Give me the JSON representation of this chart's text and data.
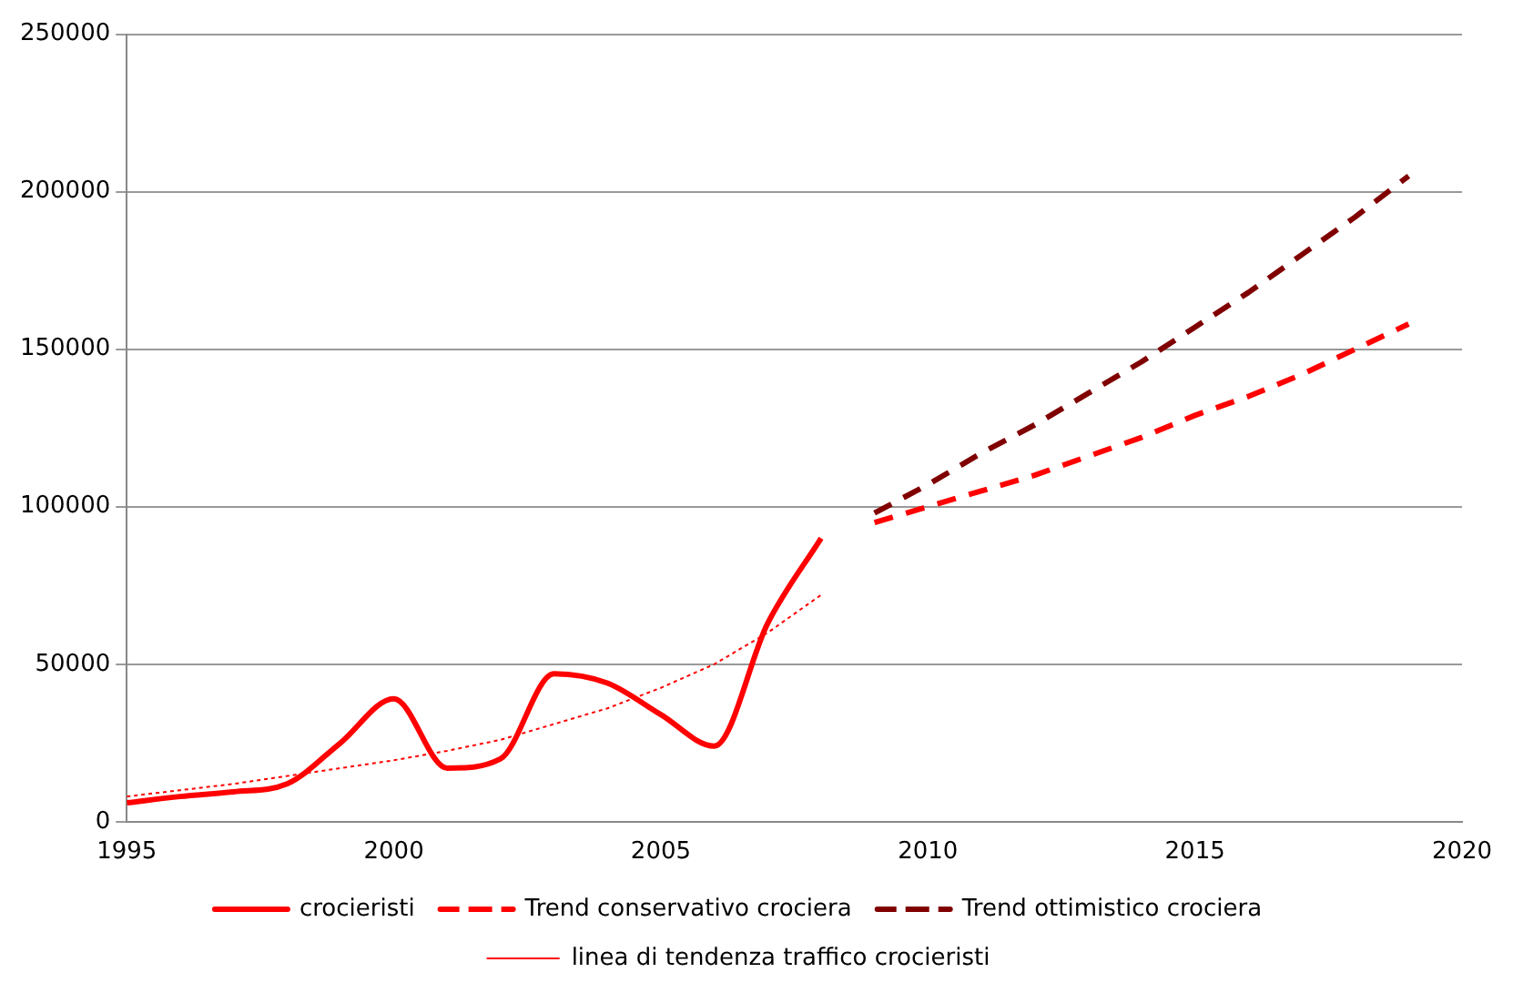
{
  "chart_data": {
    "type": "line",
    "xlim": [
      1995,
      2020
    ],
    "xticks": [
      1995,
      2000,
      2005,
      2010,
      2015,
      2020
    ],
    "ylim": [
      0,
      250000
    ],
    "yticks": [
      0,
      50000,
      100000,
      150000,
      200000,
      250000
    ],
    "grid": "y",
    "legend": "bottom",
    "marker": "none",
    "series": [
      {
        "name": "crocieristi",
        "color": "#ff0000",
        "line_style": "solid",
        "x": [
          1995,
          1996,
          1997,
          1998,
          1999,
          2000,
          2001,
          2002,
          2003,
          2004,
          2005,
          2006,
          2007,
          2008
        ],
        "values": [
          6000,
          8000,
          9500,
          12000,
          25000,
          39000,
          17000,
          20000,
          47000,
          44000,
          34000,
          24000,
          63000,
          90000
        ]
      },
      {
        "name": "Trend conservativo crociera",
        "color": "#ff0000",
        "line_style": "dashed",
        "x": [
          2009,
          2010,
          2011,
          2012,
          2013,
          2014,
          2015,
          2016,
          2017,
          2018,
          2019
        ],
        "values": [
          95000,
          100000,
          105000,
          110000,
          116000,
          122000,
          129000,
          135000,
          142000,
          150000,
          158000
        ]
      },
      {
        "name": "Trend ottimistico crociera",
        "color": "#800000",
        "line_style": "dashed",
        "x": [
          2009,
          2010,
          2011,
          2012,
          2013,
          2014,
          2015,
          2016,
          2017,
          2018,
          2019
        ],
        "values": [
          98000,
          107000,
          117000,
          126000,
          136000,
          146000,
          157000,
          168000,
          180000,
          192000,
          205000
        ]
      },
      {
        "name": "linea di tendenza traffico crocieristi",
        "color": "#ff0000",
        "line_style": "dotted",
        "x": [
          1995,
          1996,
          1997,
          1998,
          1999,
          2000,
          2001,
          2002,
          2003,
          2004,
          2005,
          2006,
          2007,
          2008
        ],
        "values": [
          8000,
          10000,
          12000,
          14500,
          17000,
          19500,
          22500,
          26000,
          31000,
          36000,
          42500,
          50000,
          60000,
          72000
        ]
      }
    ]
  }
}
